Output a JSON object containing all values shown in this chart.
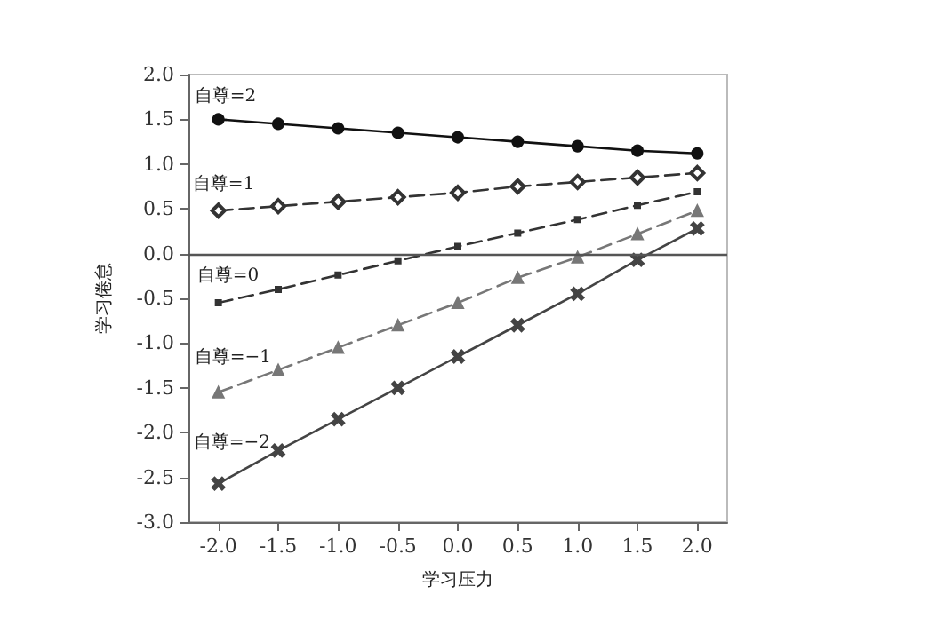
{
  "chart_data": {
    "type": "line",
    "xlabel": "学习压力",
    "ylabel": "学习倦怠",
    "x": [
      -2.0,
      -1.5,
      -1.0,
      -0.5,
      0.0,
      0.5,
      1.0,
      1.5,
      2.0
    ],
    "series": [
      {
        "name": "自尊=2",
        "color": "#111111",
        "marker": "circle",
        "line_style": "solid",
        "values": [
          1.5,
          1.45,
          1.4,
          1.35,
          1.3,
          1.25,
          1.2,
          1.15,
          1.12
        ]
      },
      {
        "name": "自尊=1",
        "color": "#333333",
        "marker": "diamond",
        "line_style": "dashed",
        "values": [
          0.48,
          0.53,
          0.58,
          0.63,
          0.68,
          0.75,
          0.8,
          0.85,
          0.9
        ]
      },
      {
        "name": "自尊=0",
        "color": "#333333",
        "marker": "square",
        "line_style": "dashed",
        "values": [
          -0.55,
          -0.4,
          -0.24,
          -0.08,
          0.08,
          0.23,
          0.38,
          0.54,
          0.69
        ]
      },
      {
        "name": "自尊=−1",
        "color": "#777777",
        "marker": "triangle",
        "line_style": "dashed",
        "values": [
          -1.55,
          -1.3,
          -1.05,
          -0.8,
          -0.55,
          -0.27,
          -0.04,
          0.22,
          0.48
        ]
      },
      {
        "name": "自尊=−2",
        "color": "#444444",
        "marker": "cross",
        "line_style": "solid",
        "values": [
          -2.57,
          -2.2,
          -1.85,
          -1.5,
          -1.15,
          -0.8,
          -0.45,
          -0.07,
          0.28
        ]
      }
    ],
    "xlim": [
      -2.25,
      2.25
    ],
    "xticks": [
      {
        "value": -2,
        "label": "-2.0"
      },
      {
        "value": -1.5,
        "label": "-1.5"
      },
      {
        "value": -1,
        "label": "-1.0"
      },
      {
        "value": -0.5,
        "label": "-0.5"
      },
      {
        "value": 0,
        "label": "0.0"
      },
      {
        "value": 0.5,
        "label": "0.5"
      },
      {
        "value": 1,
        "label": "1.0"
      },
      {
        "value": 1.5,
        "label": "1.5"
      },
      {
        "value": 2,
        "label": "2.0"
      }
    ],
    "ylim": [
      -3,
      2
    ],
    "yticks": [
      {
        "value": -3,
        "label": "-3.0"
      },
      {
        "value": -2.5,
        "label": "-2.5"
      },
      {
        "value": -2,
        "label": "-2.0"
      },
      {
        "value": -1.5,
        "label": "-1.5"
      },
      {
        "value": -1,
        "label": "-1.0"
      },
      {
        "value": -0.5,
        "label": "-0.5"
      },
      {
        "value": 0,
        "label": "0.0"
      },
      {
        "value": 0.5,
        "label": "0.5"
      },
      {
        "value": 1,
        "label": "1.0"
      },
      {
        "value": 1.5,
        "label": "1.5"
      },
      {
        "value": 2,
        "label": "2.0"
      }
    ],
    "ref_lines": [
      {
        "axis": "y",
        "value": 0,
        "color": "#555555"
      }
    ],
    "grid": false,
    "legend": false
  }
}
